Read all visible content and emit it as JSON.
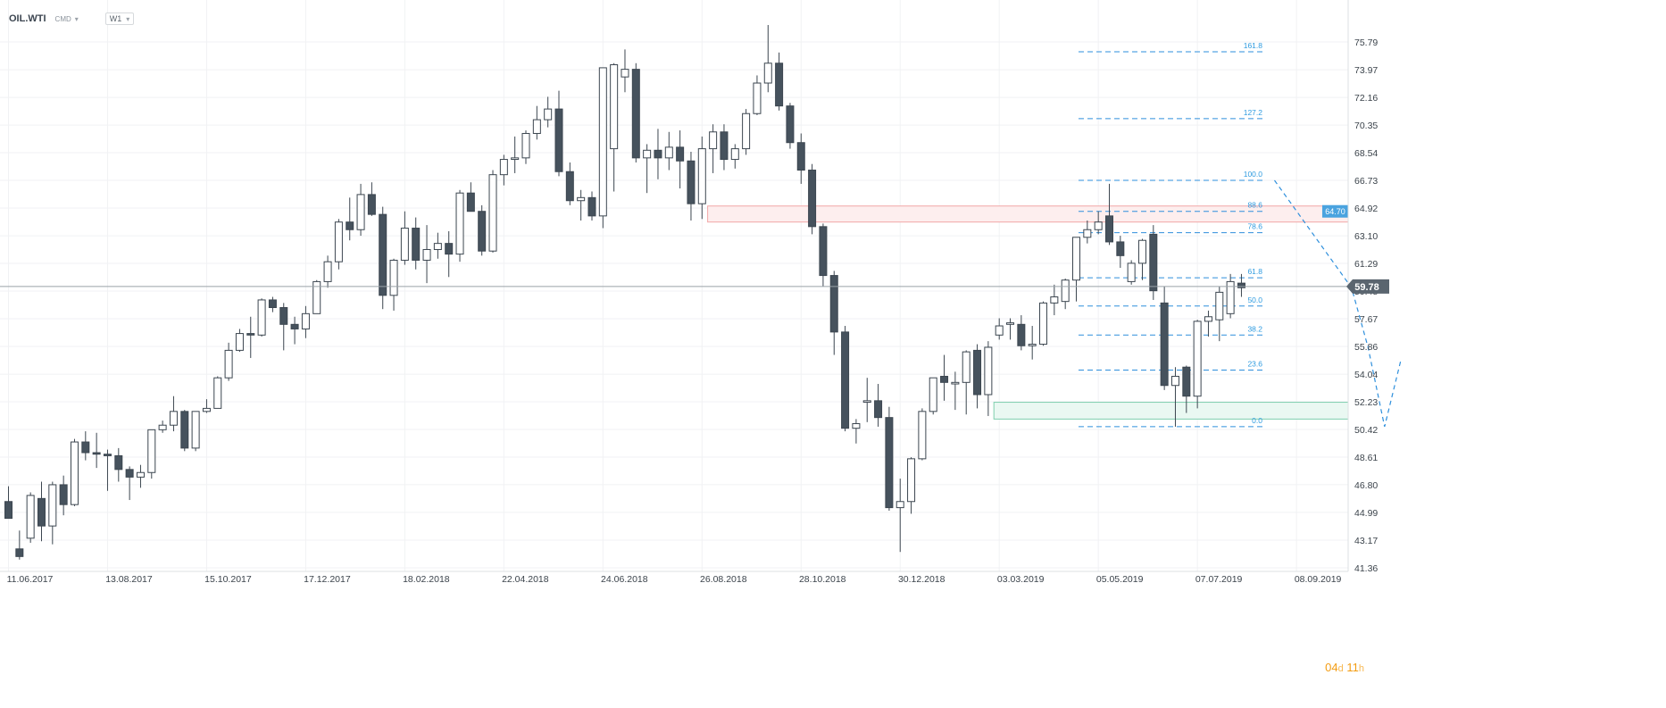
{
  "header": {
    "symbol": "OIL.WTI",
    "market": "CMD",
    "timeframe": "W1"
  },
  "countdown": {
    "days": "04",
    "days_unit": "d",
    "hours": "11",
    "hours_unit": "h"
  },
  "colors": {
    "bear_body": "#46525d",
    "bull_body": "#ffffff",
    "candle_outline": "#3c4650",
    "fib": "#2e8fdc",
    "fib_label": "#2e9be0",
    "red_zone_fill": "#fdeeee",
    "red_zone_border": "#f2a6a6",
    "green_zone_fill": "#eaf8f2",
    "green_zone_border": "#7fcfae",
    "current_price_line": "#9aa2a8",
    "current_price_box": "#5a656f",
    "fib_price_box": "#4aa3df"
  },
  "chart_data": {
    "type": "candlestick",
    "symbol": "OIL.WTI",
    "timeframe": "W1",
    "ylim": [
      41.36,
      77.3
    ],
    "y_ticks": [
      41.36,
      43.17,
      44.99,
      46.8,
      48.61,
      50.42,
      52.23,
      54.04,
      55.86,
      57.67,
      59.48,
      61.29,
      63.1,
      64.92,
      66.73,
      68.54,
      70.35,
      72.16,
      73.97,
      75.79
    ],
    "y_tick_labels": [
      "41.36",
      "43.17",
      "44.99",
      "46.80",
      "48.61",
      "50.42",
      "52.23",
      "54.04",
      "55.86",
      "57.67",
      "59.48",
      "61.29",
      "63.10",
      "64.92",
      "66.73",
      "68.54",
      "70.35",
      "72.16",
      "73.97",
      "75.79"
    ],
    "x_labels": [
      "11.06.2017",
      "13.08.2017",
      "15.10.2017",
      "17.12.2017",
      "18.02.2018",
      "22.04.2018",
      "24.06.2018",
      "26.08.2018",
      "28.10.2018",
      "30.12.2018",
      "03.03.2019",
      "05.05.2019",
      "07.07.2019",
      "08.09.2019"
    ],
    "x_label_index": [
      0,
      9,
      18,
      27,
      36,
      45,
      54,
      63,
      72,
      81,
      90,
      99,
      108,
      117
    ],
    "candles": [
      {
        "o": 45.7,
        "h": 46.7,
        "l": 44.7,
        "c": 44.6
      },
      {
        "o": 42.6,
        "h": 43.8,
        "l": 41.9,
        "c": 42.1
      },
      {
        "o": 43.3,
        "h": 46.3,
        "l": 43.0,
        "c": 46.1
      },
      {
        "o": 45.9,
        "h": 47.0,
        "l": 43.1,
        "c": 44.1
      },
      {
        "o": 44.1,
        "h": 47.0,
        "l": 42.9,
        "c": 46.8
      },
      {
        "o": 46.8,
        "h": 47.4,
        "l": 44.8,
        "c": 45.5
      },
      {
        "o": 45.5,
        "h": 49.8,
        "l": 45.4,
        "c": 49.6
      },
      {
        "o": 49.6,
        "h": 50.3,
        "l": 48.4,
        "c": 48.9
      },
      {
        "o": 48.9,
        "h": 50.2,
        "l": 47.9,
        "c": 48.8
      },
      {
        "o": 48.8,
        "h": 49.1,
        "l": 46.4,
        "c": 48.7
      },
      {
        "o": 48.7,
        "h": 49.2,
        "l": 47.0,
        "c": 47.8
      },
      {
        "o": 47.8,
        "h": 48.0,
        "l": 45.8,
        "c": 47.3
      },
      {
        "o": 47.3,
        "h": 48.1,
        "l": 46.6,
        "c": 47.6
      },
      {
        "o": 47.6,
        "h": 50.4,
        "l": 47.2,
        "c": 50.4
      },
      {
        "o": 50.4,
        "h": 51.0,
        "l": 50.2,
        "c": 50.7
      },
      {
        "o": 50.7,
        "h": 52.6,
        "l": 50.3,
        "c": 51.6
      },
      {
        "o": 51.6,
        "h": 51.7,
        "l": 49.0,
        "c": 49.2
      },
      {
        "o": 49.2,
        "h": 51.6,
        "l": 49.0,
        "c": 51.6
      },
      {
        "o": 51.6,
        "h": 52.4,
        "l": 51.5,
        "c": 51.8
      },
      {
        "o": 51.8,
        "h": 53.9,
        "l": 51.8,
        "c": 53.8
      },
      {
        "o": 53.8,
        "h": 56.1,
        "l": 53.6,
        "c": 55.6
      },
      {
        "o": 55.6,
        "h": 57.0,
        "l": 55.5,
        "c": 56.7
      },
      {
        "o": 56.7,
        "h": 57.8,
        "l": 55.1,
        "c": 56.6
      },
      {
        "o": 56.6,
        "h": 59.0,
        "l": 56.5,
        "c": 58.9
      },
      {
        "o": 58.9,
        "h": 59.1,
        "l": 58.1,
        "c": 58.4
      },
      {
        "o": 58.4,
        "h": 58.7,
        "l": 55.6,
        "c": 57.3
      },
      {
        "o": 57.3,
        "h": 57.8,
        "l": 56.0,
        "c": 57.0
      },
      {
        "o": 57.0,
        "h": 58.5,
        "l": 56.4,
        "c": 58.0
      },
      {
        "o": 58.0,
        "h": 60.2,
        "l": 58.0,
        "c": 60.1
      },
      {
        "o": 60.1,
        "h": 61.8,
        "l": 59.7,
        "c": 61.4
      },
      {
        "o": 61.4,
        "h": 64.2,
        "l": 60.9,
        "c": 64.0
      },
      {
        "o": 64.0,
        "h": 65.6,
        "l": 62.8,
        "c": 63.5
      },
      {
        "o": 63.5,
        "h": 66.5,
        "l": 63.1,
        "c": 65.8
      },
      {
        "o": 65.8,
        "h": 66.6,
        "l": 64.4,
        "c": 64.5
      },
      {
        "o": 64.5,
        "h": 65.0,
        "l": 58.3,
        "c": 59.2
      },
      {
        "o": 59.2,
        "h": 61.6,
        "l": 58.2,
        "c": 61.5
      },
      {
        "o": 61.5,
        "h": 64.7,
        "l": 61.2,
        "c": 63.6
      },
      {
        "o": 63.6,
        "h": 64.3,
        "l": 60.9,
        "c": 61.5
      },
      {
        "o": 61.5,
        "h": 63.8,
        "l": 60.0,
        "c": 62.2
      },
      {
        "o": 62.2,
        "h": 63.3,
        "l": 61.6,
        "c": 62.6
      },
      {
        "o": 62.6,
        "h": 63.4,
        "l": 60.4,
        "c": 61.9
      },
      {
        "o": 61.9,
        "h": 66.1,
        "l": 61.4,
        "c": 65.9
      },
      {
        "o": 65.9,
        "h": 66.6,
        "l": 64.7,
        "c": 64.7
      },
      {
        "o": 64.7,
        "h": 65.1,
        "l": 61.8,
        "c": 62.1
      },
      {
        "o": 62.1,
        "h": 67.4,
        "l": 62.0,
        "c": 67.1
      },
      {
        "o": 67.1,
        "h": 68.4,
        "l": 66.4,
        "c": 68.1
      },
      {
        "o": 68.1,
        "h": 69.6,
        "l": 67.2,
        "c": 68.2
      },
      {
        "o": 68.2,
        "h": 70.0,
        "l": 67.8,
        "c": 69.8
      },
      {
        "o": 69.8,
        "h": 71.6,
        "l": 69.4,
        "c": 70.7
      },
      {
        "o": 70.7,
        "h": 72.2,
        "l": 70.2,
        "c": 71.4
      },
      {
        "o": 71.4,
        "h": 72.6,
        "l": 67.0,
        "c": 67.3
      },
      {
        "o": 67.3,
        "h": 67.9,
        "l": 65.1,
        "c": 65.4
      },
      {
        "o": 65.4,
        "h": 66.1,
        "l": 64.1,
        "c": 65.6
      },
      {
        "o": 65.6,
        "h": 66.0,
        "l": 64.1,
        "c": 64.4
      },
      {
        "o": 64.4,
        "h": 74.1,
        "l": 63.6,
        "c": 74.1
      },
      {
        "o": 68.8,
        "h": 74.4,
        "l": 66.0,
        "c": 74.3
      },
      {
        "o": 73.5,
        "h": 75.3,
        "l": 72.5,
        "c": 74.0
      },
      {
        "o": 74.0,
        "h": 74.4,
        "l": 67.9,
        "c": 68.2
      },
      {
        "o": 68.2,
        "h": 69.1,
        "l": 65.9,
        "c": 68.7
      },
      {
        "o": 68.7,
        "h": 70.1,
        "l": 66.8,
        "c": 68.2
      },
      {
        "o": 68.2,
        "h": 69.9,
        "l": 67.4,
        "c": 68.9
      },
      {
        "o": 68.9,
        "h": 70.0,
        "l": 66.2,
        "c": 68.0
      },
      {
        "o": 68.0,
        "h": 68.6,
        "l": 64.1,
        "c": 65.2
      },
      {
        "o": 65.2,
        "h": 69.6,
        "l": 64.2,
        "c": 68.8
      },
      {
        "o": 68.8,
        "h": 70.4,
        "l": 67.2,
        "c": 69.9
      },
      {
        "o": 69.9,
        "h": 70.4,
        "l": 67.4,
        "c": 68.1
      },
      {
        "o": 68.1,
        "h": 69.1,
        "l": 67.5,
        "c": 68.8
      },
      {
        "o": 68.8,
        "h": 71.4,
        "l": 68.4,
        "c": 71.1
      },
      {
        "o": 71.1,
        "h": 73.6,
        "l": 71.0,
        "c": 73.1
      },
      {
        "o": 73.1,
        "h": 76.9,
        "l": 72.5,
        "c": 74.4
      },
      {
        "o": 74.4,
        "h": 75.1,
        "l": 71.3,
        "c": 71.6
      },
      {
        "o": 71.6,
        "h": 71.8,
        "l": 68.8,
        "c": 69.2
      },
      {
        "o": 69.2,
        "h": 69.8,
        "l": 66.5,
        "c": 67.4
      },
      {
        "o": 67.4,
        "h": 67.8,
        "l": 63.2,
        "c": 63.7
      },
      {
        "o": 63.7,
        "h": 63.9,
        "l": 59.8,
        "c": 60.5
      },
      {
        "o": 60.5,
        "h": 60.8,
        "l": 55.3,
        "c": 56.8
      },
      {
        "o": 56.8,
        "h": 57.2,
        "l": 50.3,
        "c": 50.5
      },
      {
        "o": 50.5,
        "h": 51.1,
        "l": 49.5,
        "c": 50.8
      },
      {
        "o": 52.2,
        "h": 53.8,
        "l": 50.9,
        "c": 52.3
      },
      {
        "o": 52.3,
        "h": 53.4,
        "l": 50.6,
        "c": 51.2
      },
      {
        "o": 51.2,
        "h": 51.9,
        "l": 45.1,
        "c": 45.3
      },
      {
        "o": 45.3,
        "h": 47.2,
        "l": 42.4,
        "c": 45.7
      },
      {
        "o": 45.7,
        "h": 48.6,
        "l": 44.9,
        "c": 48.5
      },
      {
        "o": 48.5,
        "h": 51.8,
        "l": 48.4,
        "c": 51.6
      },
      {
        "o": 51.6,
        "h": 53.8,
        "l": 51.4,
        "c": 53.8
      },
      {
        "o": 53.9,
        "h": 55.3,
        "l": 52.3,
        "c": 53.5
      },
      {
        "o": 53.4,
        "h": 54.2,
        "l": 51.7,
        "c": 53.5
      },
      {
        "o": 53.5,
        "h": 55.6,
        "l": 51.4,
        "c": 55.5
      },
      {
        "o": 55.6,
        "h": 56.0,
        "l": 51.8,
        "c": 52.7
      },
      {
        "o": 52.7,
        "h": 56.2,
        "l": 51.3,
        "c": 55.8
      },
      {
        "o": 56.6,
        "h": 57.7,
        "l": 56.3,
        "c": 57.2
      },
      {
        "o": 57.3,
        "h": 57.7,
        "l": 56.3,
        "c": 57.4
      },
      {
        "o": 57.3,
        "h": 57.9,
        "l": 55.6,
        "c": 55.9
      },
      {
        "o": 55.9,
        "h": 57.2,
        "l": 55.0,
        "c": 56.0
      },
      {
        "o": 56.0,
        "h": 58.8,
        "l": 55.9,
        "c": 58.7
      },
      {
        "o": 58.7,
        "h": 59.9,
        "l": 57.9,
        "c": 59.1
      },
      {
        "o": 58.8,
        "h": 60.3,
        "l": 58.3,
        "c": 60.2
      },
      {
        "o": 60.2,
        "h": 63.0,
        "l": 58.8,
        "c": 63.0
      },
      {
        "o": 63.0,
        "h": 64.1,
        "l": 62.6,
        "c": 63.5
      },
      {
        "o": 63.5,
        "h": 64.7,
        "l": 63.2,
        "c": 64.0
      },
      {
        "o": 64.4,
        "h": 66.5,
        "l": 62.5,
        "c": 62.7
      },
      {
        "o": 62.7,
        "h": 63.1,
        "l": 61.0,
        "c": 61.8
      },
      {
        "o": 60.1,
        "h": 61.5,
        "l": 59.9,
        "c": 61.3
      },
      {
        "o": 61.3,
        "h": 62.9,
        "l": 60.2,
        "c": 62.8
      },
      {
        "o": 63.2,
        "h": 63.8,
        "l": 58.9,
        "c": 59.5
      },
      {
        "o": 58.7,
        "h": 59.8,
        "l": 53.0,
        "c": 53.3
      },
      {
        "o": 53.3,
        "h": 54.5,
        "l": 50.6,
        "c": 53.9
      },
      {
        "o": 54.5,
        "h": 54.6,
        "l": 51.5,
        "c": 52.6
      },
      {
        "o": 52.6,
        "h": 57.6,
        "l": 51.8,
        "c": 57.5
      },
      {
        "o": 57.5,
        "h": 58.2,
        "l": 56.5,
        "c": 57.8
      },
      {
        "o": 57.6,
        "h": 59.8,
        "l": 56.2,
        "c": 59.4
      },
      {
        "o": 58.0,
        "h": 60.6,
        "l": 57.7,
        "c": 60.1
      },
      {
        "o": 60.0,
        "h": 60.6,
        "l": 59.1,
        "c": 59.7
      }
    ],
    "current_price": 59.78,
    "current_price_label": "59.78",
    "fibonacci": {
      "start_index": 115,
      "end_index": 122,
      "levels": [
        {
          "label": "161.8",
          "price": 75.15
        },
        {
          "label": "127.2",
          "price": 70.77
        },
        {
          "label": "100.0",
          "price": 66.73
        },
        {
          "label": "88.6",
          "price": 64.7
        },
        {
          "label": "78.6",
          "price": 63.3
        },
        {
          "label": "61.8",
          "price": 60.35
        },
        {
          "label": "50.0",
          "price": 58.5
        },
        {
          "label": "38.2",
          "price": 56.6
        },
        {
          "label": "23.6",
          "price": 54.31
        },
        {
          "label": "0.0",
          "price": 50.6
        }
      ],
      "price_tag": "64.70",
      "swing_line": [
        [
          115,
          66.73
        ],
        [
          122,
          59.7
        ],
        [
          123.5,
          55.8
        ],
        [
          125,
          50.6
        ],
        [
          126.5,
          55.0
        ]
      ]
    },
    "zones": [
      {
        "name": "resistance",
        "from_index": 64,
        "to_index": 126,
        "price_low": 64.0,
        "price_high": 65.05
      },
      {
        "name": "support",
        "from_index": 90,
        "to_index": 126,
        "price_low": 51.1,
        "price_high": 52.2
      }
    ]
  }
}
